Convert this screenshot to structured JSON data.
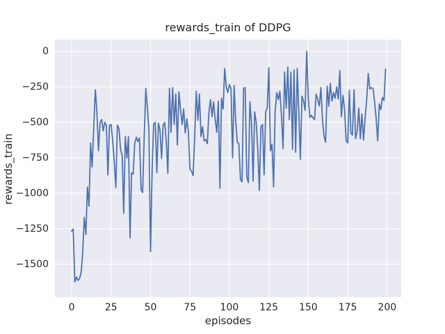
{
  "figure": {
    "title": "rewards_train of DDPG",
    "xlabel": "episodes",
    "ylabel": "rewards_train"
  },
  "chart_data": {
    "type": "line",
    "title": "rewards_train of DDPG",
    "xlabel": "episodes",
    "ylabel": "rewards_train",
    "grid": true,
    "legend": false,
    "background_color": "#eaeaf2",
    "grid_color": "#ffffff",
    "line_color": "#4c72b0",
    "text_color": "#262626",
    "xlim": [
      -10.6,
      208.9
    ],
    "ylim": [
      -1732,
      83
    ],
    "x_ticks": [
      0,
      25,
      50,
      75,
      100,
      125,
      150,
      175,
      200
    ],
    "x_tick_labels": [
      "0",
      "25",
      "50",
      "75",
      "100",
      "125",
      "150",
      "175",
      "200"
    ],
    "y_ticks": [
      0,
      -250,
      -500,
      -750,
      -1000,
      -1250,
      -1500
    ],
    "y_tick_labels": [
      "0",
      "−250",
      "−500",
      "−750",
      "−1000",
      "−1250",
      "−1500"
    ],
    "series": [
      {
        "name": "rewards_train",
        "color": "#4c72b0",
        "x_start": 0,
        "x_step": 1,
        "values": [
          -1267,
          -1252,
          -1625,
          -1590,
          -1615,
          -1600,
          -1560,
          -1420,
          -1170,
          -1290,
          -955,
          -1090,
          -645,
          -815,
          -540,
          -270,
          -420,
          -700,
          -500,
          -480,
          -560,
          -500,
          -520,
          -870,
          -520,
          -515,
          -625,
          -775,
          -960,
          -520,
          -545,
          -690,
          -735,
          -1140,
          -600,
          -750,
          -600,
          -1315,
          -855,
          -865,
          -645,
          -605,
          -635,
          -610,
          -975,
          -995,
          -600,
          -260,
          -400,
          -560,
          -1410,
          -830,
          -510,
          -500,
          -855,
          -505,
          -555,
          -755,
          -520,
          -500,
          -640,
          -860,
          -260,
          -570,
          -255,
          -515,
          -300,
          -660,
          -285,
          -405,
          -515,
          -405,
          -575,
          -475,
          -560,
          -830,
          -845,
          -875,
          -600,
          -280,
          -485,
          -300,
          -600,
          -530,
          -630,
          -620,
          -650,
          -430,
          -340,
          -460,
          -355,
          -480,
          -570,
          -350,
          -965,
          -330,
          -405,
          -120,
          -250,
          -290,
          -235,
          -260,
          -750,
          -240,
          -490,
          -640,
          -650,
          -900,
          -920,
          -260,
          -255,
          -880,
          -925,
          -355,
          -500,
          -915,
          -425,
          -500,
          -700,
          -980,
          -530,
          -515,
          -870,
          -425,
          -395,
          -115,
          -700,
          -655,
          -955,
          -425,
          -290,
          -340,
          -280,
          -450,
          -685,
          -145,
          -400,
          -110,
          -480,
          -145,
          -690,
          -130,
          -710,
          -120,
          -440,
          -760,
          -315,
          -350,
          -415,
          0,
          -330,
          -465,
          -450,
          -470,
          -480,
          -300,
          -340,
          -385,
          -255,
          -480,
          -600,
          -640,
          -245,
          -385,
          -225,
          -350,
          -290,
          -330,
          -250,
          -335,
          -135,
          -460,
          -310,
          -410,
          -630,
          -645,
          -275,
          -575,
          -590,
          -270,
          -615,
          -560,
          -400,
          -615,
          -440,
          -625,
          -475,
          -345,
          -155,
          -265,
          -255,
          -260,
          -350,
          -470,
          -630,
          -370,
          -410,
          -325,
          -345,
          -125
        ]
      }
    ]
  }
}
